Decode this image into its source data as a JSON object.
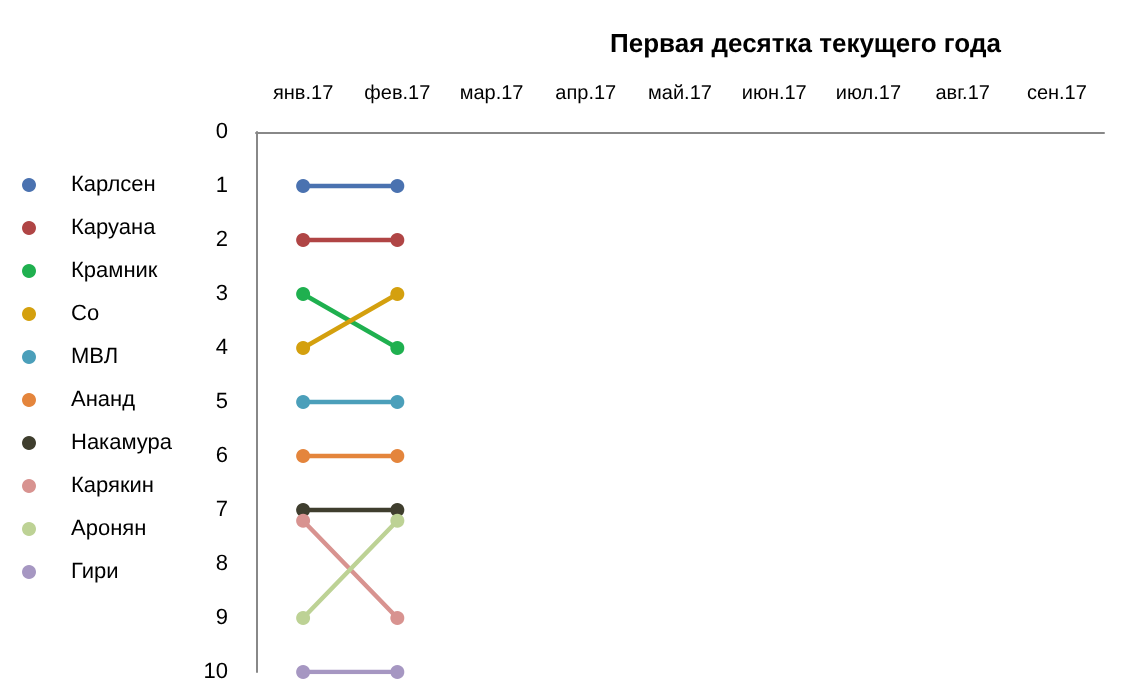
{
  "chart_data": {
    "type": "line",
    "title": "Первая десятка текущего года",
    "categories": [
      "янв.17",
      "фев.17",
      "мар.17",
      "апр.17",
      "май.17",
      "июн.17",
      "июл.17",
      "авг.17",
      "сен.17"
    ],
    "ylim": [
      10,
      0
    ],
    "yticks": [
      0,
      1,
      2,
      3,
      4,
      5,
      6,
      7,
      8,
      9,
      10
    ],
    "grid": false,
    "legend": "left",
    "marker": "circle",
    "line_style": "solid",
    "series": [
      {
        "name": "Карлсен",
        "color": "#4a72b0",
        "values": [
          1,
          1,
          null,
          null,
          null,
          null,
          null,
          null,
          null
        ]
      },
      {
        "name": "Каруана",
        "color": "#b04545",
        "values": [
          2,
          2,
          null,
          null,
          null,
          null,
          null,
          null,
          null
        ]
      },
      {
        "name": "Крамник",
        "color": "#1fb04f",
        "values": [
          3,
          4,
          null,
          null,
          null,
          null,
          null,
          null,
          null
        ]
      },
      {
        "name": "Со",
        "color": "#d4a00e",
        "values": [
          4,
          3,
          null,
          null,
          null,
          null,
          null,
          null,
          null
        ]
      },
      {
        "name": "МВЛ",
        "color": "#4b9fba",
        "values": [
          5,
          5,
          null,
          null,
          null,
          null,
          null,
          null,
          null
        ]
      },
      {
        "name": "Ананд",
        "color": "#e4853c",
        "values": [
          6,
          6,
          null,
          null,
          null,
          null,
          null,
          null,
          null
        ]
      },
      {
        "name": "Накамура",
        "color": "#3f3e2e",
        "values": [
          7,
          7,
          null,
          null,
          null,
          null,
          null,
          null,
          null
        ]
      },
      {
        "name": "Карякин",
        "color": "#d89390",
        "values": [
          7.2,
          9,
          null,
          null,
          null,
          null,
          null,
          null,
          null
        ]
      },
      {
        "name": "Аронян",
        "color": "#bdd295",
        "values": [
          9,
          7.2,
          null,
          null,
          null,
          null,
          null,
          null,
          null
        ]
      },
      {
        "name": "Гири",
        "color": "#a697c2",
        "values": [
          10,
          10,
          null,
          null,
          null,
          null,
          null,
          null,
          null
        ]
      }
    ]
  }
}
